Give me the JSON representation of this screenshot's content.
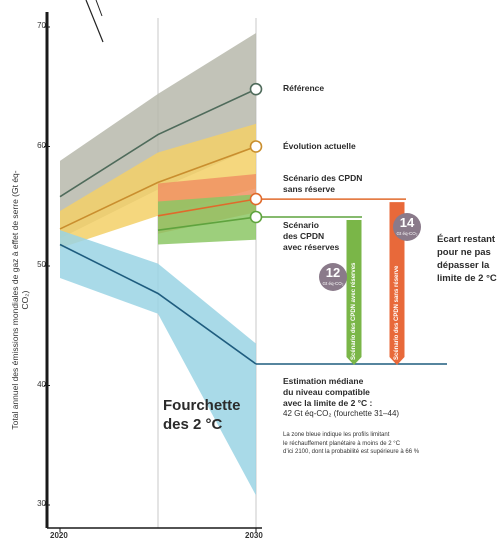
{
  "chart_data": {
    "type": "line",
    "x": [
      2020,
      2025,
      2030
    ],
    "ylabel": "Total annuel des émissions mondiales de gaz à effet de serre (Gt éq-CO₂)",
    "ylim": [
      29,
      71
    ],
    "yticks": [
      30,
      40,
      50,
      60,
      70
    ],
    "xticks": [
      2020,
      2030
    ],
    "series": [
      {
        "name": "Référence",
        "values": [
          55.8,
          61.0,
          64.8
        ],
        "band_low": [
          52.3,
          56.4,
          60.0
        ],
        "band_high": [
          58.8,
          64.4,
          69.5
        ],
        "line_color": "#4f6b5b",
        "band_color": "#b7b8ab"
      },
      {
        "name": "Évolution actuelle",
        "values": [
          53.1,
          57.0,
          60.0
        ],
        "band_low": [
          51.5,
          54.2,
          56.5
        ],
        "band_high": [
          54.6,
          59.5,
          61.9
        ],
        "line_color": "#c98e2e",
        "band_color": "#f3d067"
      },
      {
        "name": "Scénario des CPDN sans réserve",
        "values": [
          null,
          54.2,
          55.6
        ],
        "band_low": [
          null,
          52.7,
          54.5
        ],
        "band_high": [
          null,
          56.9,
          57.7
        ],
        "line_color": "#e06a2b",
        "band_color": "#f09263"
      },
      {
        "name": "Scénario des CPDN avec réserves",
        "values": [
          null,
          53.0,
          54.1
        ],
        "band_low": [
          null,
          51.8,
          52.2
        ],
        "band_high": [
          null,
          55.4,
          56.0
        ],
        "line_color": "#5fa33e",
        "band_color": "#8cc765"
      },
      {
        "name": "Fourchette des 2 °C",
        "values": [
          51.8,
          47.7,
          41.8
        ],
        "band_low": [
          49.0,
          46.0,
          30.8
        ],
        "band_high": [
          53.0,
          50.2,
          43.5
        ],
        "line_color": "#1f5d7f",
        "band_color": "#9ad3e4"
      }
    ],
    "gaps": [
      {
        "label": "Scénario des CPDN avec réserves",
        "value": "12",
        "unit": "Gt éq-CO₂",
        "from": 54.1,
        "to": 41.8,
        "color": "#7ab648"
      },
      {
        "label": "Scénario des CPDN sans réserve",
        "value": "14",
        "unit": "Gt éq-CO₂",
        "from": 55.6,
        "to": 41.8,
        "color": "#e8693a"
      }
    ],
    "median_2c": 41.8
  },
  "labels": {
    "reference": "Référence",
    "evolution": "Évolution actuelle",
    "cpdn_sans": "Scénario des CPDN\nsans réserve",
    "cpdn_avec": "Scénario\ndes CPDN\navec réserves",
    "ecart": "Écart restant\npour ne pas\ndépasser la\nlimite de 2 °C",
    "range_title": "Fourchette\ndes 2 °C",
    "estimation": "Estimation médiane\ndu niveau compatible\navec la limite de 2 °C :",
    "estimation_value": "42 Gt éq-CO₂ (fourchette 31–44)",
    "note": "La zone bleue indique les profils limitant\nle réchauffement planétaire à moins de 2 °C\nd’ici 2100, dont la probabilité est supérieure à 66 %",
    "gap_avec_text": "Scénario des CPDN avec réserves",
    "gap_sans_text": "Scénario des CPDN sans réserve",
    "badge_12": "12",
    "badge_14": "14",
    "badge_unit": "Gt éq-CO₂"
  }
}
